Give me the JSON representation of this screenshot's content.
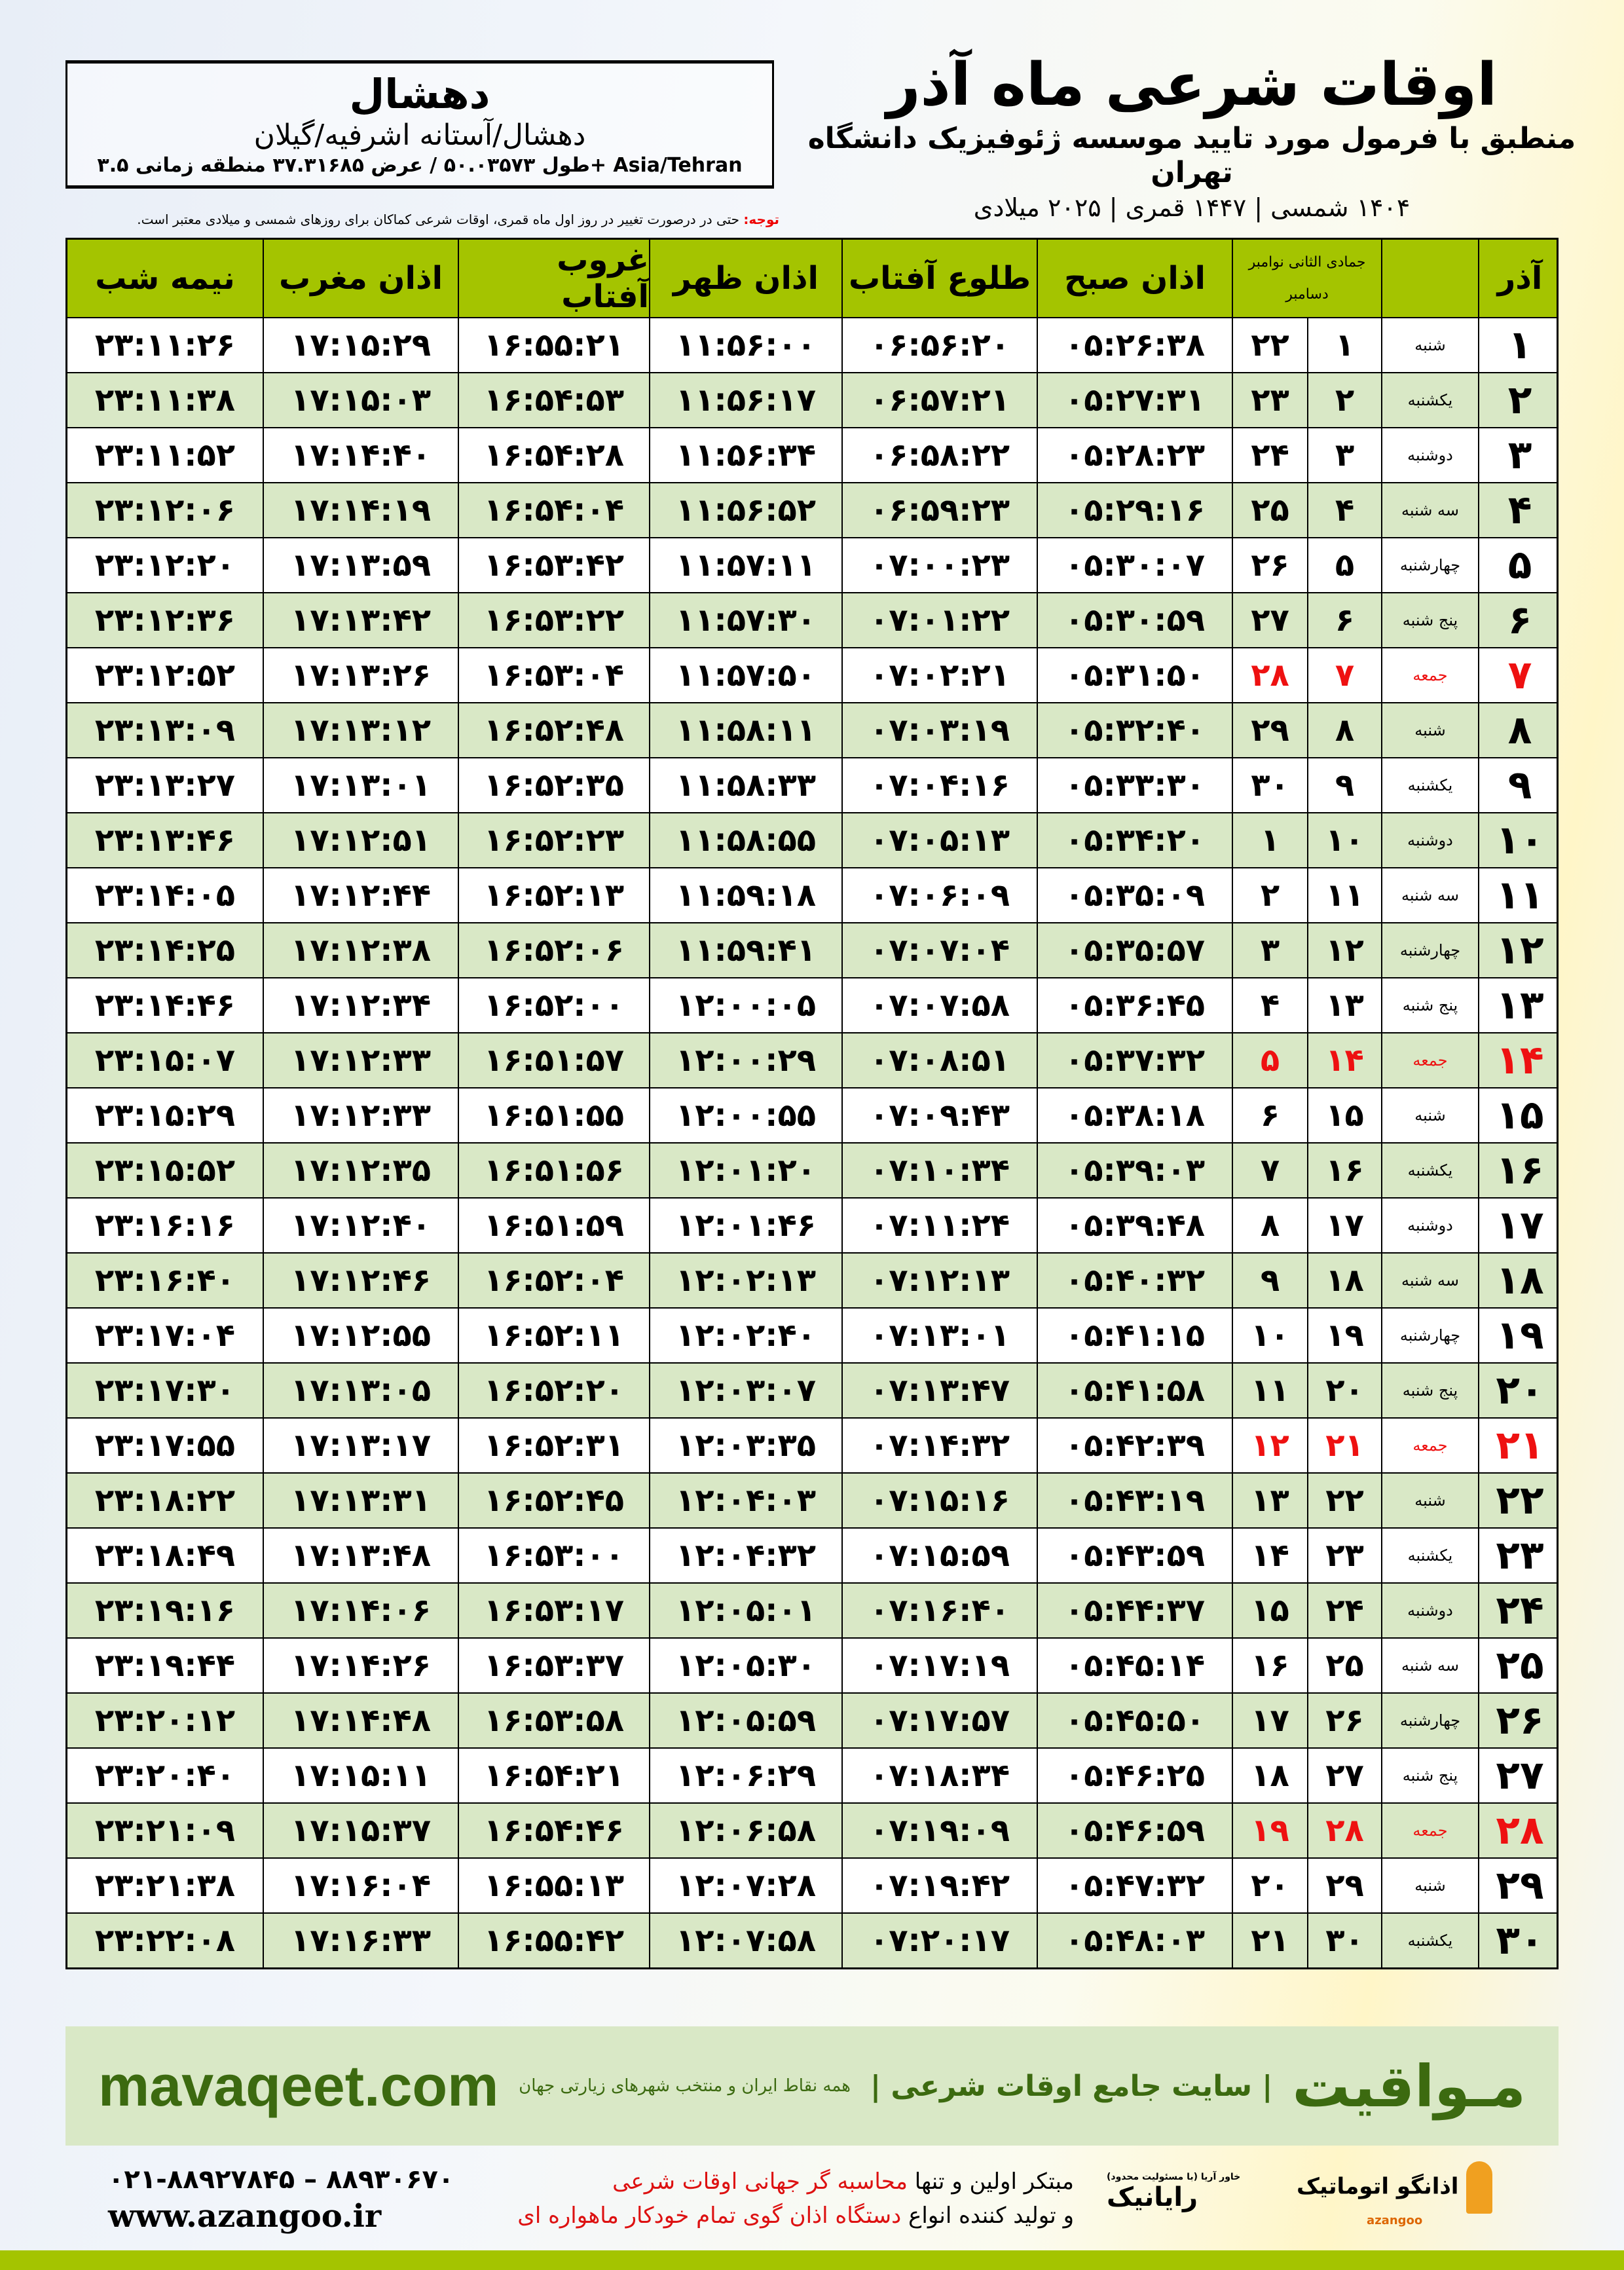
{
  "header": {
    "title": "اوقات شرعی ماه آذر",
    "subtitle": "منطبق با فرمول مورد تایید موسسه ژئوفیزیک دانشگاه تهران",
    "years": "۱۴۰۴ شمسی | ۱۴۴۷ قمری | ۲۰۲۵ میلادی"
  },
  "location": {
    "city": "دهشال",
    "path": "دهشال/آستانه اشرفیه/گیلان",
    "coords": "طول ۵۰.۰۳۵۷۳ / عرض ۳۷.۳۱۶۸۵ منطقه زمانی ۳.۵+ Asia/Tehran"
  },
  "note": {
    "label": "توجه:",
    "text": " حتی در درصورت تغییر در روز اول ماه قمری، اوقات شرعی کماکان برای روزهای شمسی و میلادی معتبر است."
  },
  "table": {
    "headers": {
      "midnight": "نیمه شب",
      "maghrib": "اذان مغرب",
      "sunset": "غروب آفتاب",
      "dhuhr": "اذان ظهر",
      "sunrise": "طلوع آفتاب",
      "fajr": "اذان صبح",
      "hijri": "جمادی الثانی",
      "nov": "نوامبر",
      "dec": "دسامبر",
      "month": "آذر"
    },
    "colors": {
      "header": "#a4c400",
      "alt_row": "#d9e8c6",
      "friday": "#e11111"
    },
    "rows": [
      [
        "۱",
        "شنبه",
        "۱",
        "۲۲",
        "۰۵:۲۶:۳۸",
        "۰۶:۵۶:۲۰",
        "۱۱:۵۶:۰۰",
        "۱۶:۵۵:۲۱",
        "۱۷:۱۵:۲۹",
        "۲۳:۱۱:۲۶"
      ],
      [
        "۲",
        "یکشنبه",
        "۲",
        "۲۳",
        "۰۵:۲۷:۳۱",
        "۰۶:۵۷:۲۱",
        "۱۱:۵۶:۱۷",
        "۱۶:۵۴:۵۳",
        "۱۷:۱۵:۰۳",
        "۲۳:۱۱:۳۸"
      ],
      [
        "۳",
        "دوشنبه",
        "۳",
        "۲۴",
        "۰۵:۲۸:۲۳",
        "۰۶:۵۸:۲۲",
        "۱۱:۵۶:۳۴",
        "۱۶:۵۴:۲۸",
        "۱۷:۱۴:۴۰",
        "۲۳:۱۱:۵۲"
      ],
      [
        "۴",
        "سه شنبه",
        "۴",
        "۲۵",
        "۰۵:۲۹:۱۶",
        "۰۶:۵۹:۲۳",
        "۱۱:۵۶:۵۲",
        "۱۶:۵۴:۰۴",
        "۱۷:۱۴:۱۹",
        "۲۳:۱۲:۰۶"
      ],
      [
        "۵",
        "چهارشنبه",
        "۵",
        "۲۶",
        "۰۵:۳۰:۰۷",
        "۰۷:۰۰:۲۳",
        "۱۱:۵۷:۱۱",
        "۱۶:۵۳:۴۲",
        "۱۷:۱۳:۵۹",
        "۲۳:۱۲:۲۰"
      ],
      [
        "۶",
        "پنج شنبه",
        "۶",
        "۲۷",
        "۰۵:۳۰:۵۹",
        "۰۷:۰۱:۲۲",
        "۱۱:۵۷:۳۰",
        "۱۶:۵۳:۲۲",
        "۱۷:۱۳:۴۲",
        "۲۳:۱۲:۳۶"
      ],
      [
        "۷",
        "جمعه",
        "۷",
        "۲۸",
        "۰۵:۳۱:۵۰",
        "۰۷:۰۲:۲۱",
        "۱۱:۵۷:۵۰",
        "۱۶:۵۳:۰۴",
        "۱۷:۱۳:۲۶",
        "۲۳:۱۲:۵۲"
      ],
      [
        "۸",
        "شنبه",
        "۸",
        "۲۹",
        "۰۵:۳۲:۴۰",
        "۰۷:۰۳:۱۹",
        "۱۱:۵۸:۱۱",
        "۱۶:۵۲:۴۸",
        "۱۷:۱۳:۱۲",
        "۲۳:۱۳:۰۹"
      ],
      [
        "۹",
        "یکشنبه",
        "۹",
        "۳۰",
        "۰۵:۳۳:۳۰",
        "۰۷:۰۴:۱۶",
        "۱۱:۵۸:۳۳",
        "۱۶:۵۲:۳۵",
        "۱۷:۱۳:۰۱",
        "۲۳:۱۳:۲۷"
      ],
      [
        "۱۰",
        "دوشنبه",
        "۱۰",
        "۱",
        "۰۵:۳۴:۲۰",
        "۰۷:۰۵:۱۳",
        "۱۱:۵۸:۵۵",
        "۱۶:۵۲:۲۳",
        "۱۷:۱۲:۵۱",
        "۲۳:۱۳:۴۶"
      ],
      [
        "۱۱",
        "سه شنبه",
        "۱۱",
        "۲",
        "۰۵:۳۵:۰۹",
        "۰۷:۰۶:۰۹",
        "۱۱:۵۹:۱۸",
        "۱۶:۵۲:۱۳",
        "۱۷:۱۲:۴۴",
        "۲۳:۱۴:۰۵"
      ],
      [
        "۱۲",
        "چهارشنبه",
        "۱۲",
        "۳",
        "۰۵:۳۵:۵۷",
        "۰۷:۰۷:۰۴",
        "۱۱:۵۹:۴۱",
        "۱۶:۵۲:۰۶",
        "۱۷:۱۲:۳۸",
        "۲۳:۱۴:۲۵"
      ],
      [
        "۱۳",
        "پنج شنبه",
        "۱۳",
        "۴",
        "۰۵:۳۶:۴۵",
        "۰۷:۰۷:۵۸",
        "۱۲:۰۰:۰۵",
        "۱۶:۵۲:۰۰",
        "۱۷:۱۲:۳۴",
        "۲۳:۱۴:۴۶"
      ],
      [
        "۱۴",
        "جمعه",
        "۱۴",
        "۵",
        "۰۵:۳۷:۳۲",
        "۰۷:۰۸:۵۱",
        "۱۲:۰۰:۲۹",
        "۱۶:۵۱:۵۷",
        "۱۷:۱۲:۳۳",
        "۲۳:۱۵:۰۷"
      ],
      [
        "۱۵",
        "شنبه",
        "۱۵",
        "۶",
        "۰۵:۳۸:۱۸",
        "۰۷:۰۹:۴۳",
        "۱۲:۰۰:۵۵",
        "۱۶:۵۱:۵۵",
        "۱۷:۱۲:۳۳",
        "۲۳:۱۵:۲۹"
      ],
      [
        "۱۶",
        "یکشنبه",
        "۱۶",
        "۷",
        "۰۵:۳۹:۰۳",
        "۰۷:۱۰:۳۴",
        "۱۲:۰۱:۲۰",
        "۱۶:۵۱:۵۶",
        "۱۷:۱۲:۳۵",
        "۲۳:۱۵:۵۲"
      ],
      [
        "۱۷",
        "دوشنبه",
        "۱۷",
        "۸",
        "۰۵:۳۹:۴۸",
        "۰۷:۱۱:۲۴",
        "۱۲:۰۱:۴۶",
        "۱۶:۵۱:۵۹",
        "۱۷:۱۲:۴۰",
        "۲۳:۱۶:۱۶"
      ],
      [
        "۱۸",
        "سه شنبه",
        "۱۸",
        "۹",
        "۰۵:۴۰:۳۲",
        "۰۷:۱۲:۱۳",
        "۱۲:۰۲:۱۳",
        "۱۶:۵۲:۰۴",
        "۱۷:۱۲:۴۶",
        "۲۳:۱۶:۴۰"
      ],
      [
        "۱۹",
        "چهارشنبه",
        "۱۹",
        "۱۰",
        "۰۵:۴۱:۱۵",
        "۰۷:۱۳:۰۱",
        "۱۲:۰۲:۴۰",
        "۱۶:۵۲:۱۱",
        "۱۷:۱۲:۵۵",
        "۲۳:۱۷:۰۴"
      ],
      [
        "۲۰",
        "پنج شنبه",
        "۲۰",
        "۱۱",
        "۰۵:۴۱:۵۸",
        "۰۷:۱۳:۴۷",
        "۱۲:۰۳:۰۷",
        "۱۶:۵۲:۲۰",
        "۱۷:۱۳:۰۵",
        "۲۳:۱۷:۳۰"
      ],
      [
        "۲۱",
        "جمعه",
        "۲۱",
        "۱۲",
        "۰۵:۴۲:۳۹",
        "۰۷:۱۴:۳۲",
        "۱۲:۰۳:۳۵",
        "۱۶:۵۲:۳۱",
        "۱۷:۱۳:۱۷",
        "۲۳:۱۷:۵۵"
      ],
      [
        "۲۲",
        "شنبه",
        "۲۲",
        "۱۳",
        "۰۵:۴۳:۱۹",
        "۰۷:۱۵:۱۶",
        "۱۲:۰۴:۰۳",
        "۱۶:۵۲:۴۵",
        "۱۷:۱۳:۳۱",
        "۲۳:۱۸:۲۲"
      ],
      [
        "۲۳",
        "یکشنبه",
        "۲۳",
        "۱۴",
        "۰۵:۴۳:۵۹",
        "۰۷:۱۵:۵۹",
        "۱۲:۰۴:۳۲",
        "۱۶:۵۳:۰۰",
        "۱۷:۱۳:۴۸",
        "۲۳:۱۸:۴۹"
      ],
      [
        "۲۴",
        "دوشنبه",
        "۲۴",
        "۱۵",
        "۰۵:۴۴:۳۷",
        "۰۷:۱۶:۴۰",
        "۱۲:۰۵:۰۱",
        "۱۶:۵۳:۱۷",
        "۱۷:۱۴:۰۶",
        "۲۳:۱۹:۱۶"
      ],
      [
        "۲۵",
        "سه شنبه",
        "۲۵",
        "۱۶",
        "۰۵:۴۵:۱۴",
        "۰۷:۱۷:۱۹",
        "۱۲:۰۵:۳۰",
        "۱۶:۵۳:۳۷",
        "۱۷:۱۴:۲۶",
        "۲۳:۱۹:۴۴"
      ],
      [
        "۲۶",
        "چهارشنبه",
        "۲۶",
        "۱۷",
        "۰۵:۴۵:۵۰",
        "۰۷:۱۷:۵۷",
        "۱۲:۰۵:۵۹",
        "۱۶:۵۳:۵۸",
        "۱۷:۱۴:۴۸",
        "۲۳:۲۰:۱۲"
      ],
      [
        "۲۷",
        "پنج شنبه",
        "۲۷",
        "۱۸",
        "۰۵:۴۶:۲۵",
        "۰۷:۱۸:۳۴",
        "۱۲:۰۶:۲۹",
        "۱۶:۵۴:۲۱",
        "۱۷:۱۵:۱۱",
        "۲۳:۲۰:۴۰"
      ],
      [
        "۲۸",
        "جمعه",
        "۲۸",
        "۱۹",
        "۰۵:۴۶:۵۹",
        "۰۷:۱۹:۰۹",
        "۱۲:۰۶:۵۸",
        "۱۶:۵۴:۴۶",
        "۱۷:۱۵:۳۷",
        "۲۳:۲۱:۰۹"
      ],
      [
        "۲۹",
        "شنبه",
        "۲۹",
        "۲۰",
        "۰۵:۴۷:۳۲",
        "۰۷:۱۹:۴۲",
        "۱۲:۰۷:۲۸",
        "۱۶:۵۵:۱۳",
        "۱۷:۱۶:۰۴",
        "۲۳:۲۱:۳۸"
      ],
      [
        "۳۰",
        "یکشنبه",
        "۳۰",
        "۲۱",
        "۰۵:۴۸:۰۳",
        "۰۷:۲۰:۱۷",
        "۱۲:۰۷:۵۸",
        "۱۶:۵۵:۴۲",
        "۱۷:۱۶:۳۳",
        "۲۳:۲۲:۰۸"
      ]
    ]
  },
  "footer": {
    "brand": "مـواقیت",
    "brand_tagline": "| سایت جامع اوقات شرعی |",
    "brand_sub": "همه نقاط ایران و منتخب شهرهای زیارتی جهان",
    "site": "mavaqeet.com",
    "phone": "۰۲۱-۸۸۹۲۷۸۴۵ – ۸۸۹۳۰۶۷۰",
    "web": "www.azangoo.ir",
    "promo_line1_a": "مبتکر اولین و تنها ",
    "promo_line1_b": "محاسبه گر جهانی اوقات شرعی",
    "promo_line2_a": "و تولید کننده انواع ",
    "promo_line2_b": "دستگاه اذان گوی تمام خودکار ماهواره ای",
    "logo_rayanik": "رایانیک",
    "logo_rayanik_small": "(با مسئولیت محدود) خاور آریا",
    "logo_azangoo": "اذانگو اتوماتیک",
    "logo_azangoo_sub": "azangoo"
  }
}
